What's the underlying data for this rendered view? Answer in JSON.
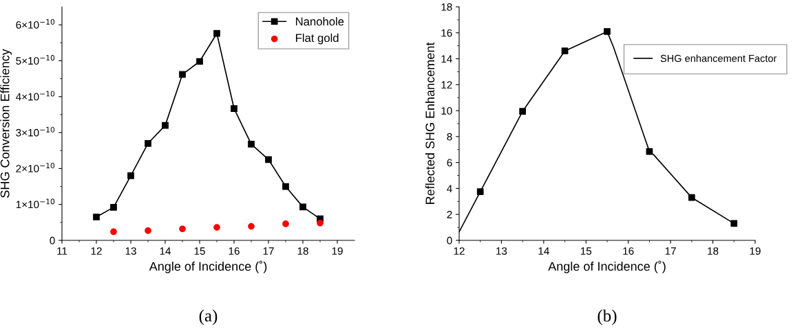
{
  "chart_data": [
    {
      "type": "line",
      "xlabel": "Angle of Incidence (˚)",
      "ylabel": "SHG Conversion Efficiency",
      "annotations": [
        "(a)"
      ],
      "legend": "top right",
      "grid": false,
      "xlim": [
        11,
        19.5
      ],
      "xticks": [
        11,
        {
          "value": 11.5,
          "label": null
        },
        12,
        {
          "value": 12.5,
          "label": null
        },
        13,
        {
          "value": 13.5,
          "label": null
        },
        14,
        {
          "value": 14.5,
          "label": null
        },
        15,
        {
          "value": 15.5,
          "label": null
        },
        16,
        {
          "value": 16.5,
          "label": null
        },
        17,
        {
          "value": 17.5,
          "label": null
        },
        18,
        {
          "value": 18.5,
          "label": null
        },
        19
      ],
      "ylim": [
        0,
        6.5e-10
      ],
      "yticks": [
        0,
        {
          "value": 5e-11,
          "label": null
        },
        {
          "value": 1e-10,
          "label": "1×10$^{−10}$"
        },
        {
          "value": 1.5e-10,
          "label": null
        },
        {
          "value": 2e-10,
          "label": "2×10$^{−10}$"
        },
        {
          "value": 2.5e-10,
          "label": null
        },
        {
          "value": 3e-10,
          "label": "3×10$^{−10}$"
        },
        {
          "value": 3.5e-10,
          "label": null
        },
        {
          "value": 4e-10,
          "label": "4×10$^{−10}$"
        },
        {
          "value": 4.5e-10,
          "label": null
        },
        {
          "value": 5e-10,
          "label": "5×10$^{−10}$"
        },
        {
          "value": 5.5e-10,
          "label": null
        },
        {
          "value": 6e-10,
          "label": "6×10$^{−10}$"
        }
      ],
      "series": [
        {
          "name": "Nanohole",
          "marker": "square",
          "color": "#000000",
          "x": [
            12,
            12.5,
            13,
            13.5,
            14,
            14.5,
            15,
            15.5,
            16,
            16.5,
            17,
            17.5,
            18,
            18.5
          ],
          "values": [
            6.5e-11,
            9.2e-11,
            1.8e-10,
            2.7e-10,
            3.2e-10,
            4.62e-10,
            4.98e-10,
            5.76e-10,
            3.67e-10,
            2.68e-10,
            2.25e-10,
            1.5e-10,
            9.3e-11,
            6e-11
          ]
        },
        {
          "name": "Flat gold",
          "type": "scatter",
          "marker": "circle",
          "color": "#ff0000",
          "x": [
            12.5,
            13.5,
            14.5,
            15.5,
            16.5,
            17.5,
            18.5
          ],
          "values": [
            2.4e-11,
            2.7e-11,
            3.2e-11,
            3.6e-11,
            3.9e-11,
            4.6e-11,
            4.8e-11
          ]
        }
      ]
    },
    {
      "type": "line",
      "xlabel": "Angle of Incidence (˚)",
      "ylabel": "Reflected SHG Enhancement",
      "annotations": [
        "(b)"
      ],
      "legend": "top right",
      "grid": false,
      "xlim": [
        12,
        19
      ],
      "xticks": [
        12,
        {
          "value": 12.5,
          "label": null
        },
        13,
        {
          "value": 13.5,
          "label": null
        },
        14,
        {
          "value": 14.5,
          "label": null
        },
        15,
        {
          "value": 15.5,
          "label": null
        },
        16,
        {
          "value": 16.5,
          "label": null
        },
        17,
        {
          "value": 17.5,
          "label": null
        },
        18,
        {
          "value": 18.5,
          "label": null
        },
        19
      ],
      "ylim": [
        0,
        18
      ],
      "yticks": [
        0,
        {
          "value": 1,
          "label": null
        },
        2,
        {
          "value": 3,
          "label": null
        },
        4,
        {
          "value": 5,
          "label": null
        },
        6,
        {
          "value": 7,
          "label": null
        },
        8,
        {
          "value": 9,
          "label": null
        },
        10,
        {
          "value": 11,
          "label": null
        },
        12,
        {
          "value": 13,
          "label": null
        },
        14,
        {
          "value": 15,
          "label": null
        },
        16,
        {
          "value": 17,
          "label": null
        },
        18
      ],
      "series": [
        {
          "name": "SHG enhancement Factor",
          "marker": "none",
          "color": "#000000",
          "x": [
            12,
            12.5,
            13.5,
            14.5,
            15.5,
            15.65,
            16.4,
            16.5,
            16.6,
            17.5,
            18.5
          ],
          "values": [
            0.65,
            3.75,
            9.95,
            14.6,
            16.1,
            14.9,
            7.8,
            6.85,
            6.6,
            3.3,
            1.3
          ]
        },
        {
          "type": "scatter",
          "marker": "square",
          "color": "#000000",
          "x": [
            12.5,
            13.5,
            14.5,
            15.5,
            16.5,
            17.5,
            18.5
          ],
          "values": [
            3.75,
            9.95,
            14.6,
            16.1,
            6.85,
            3.3,
            1.3
          ]
        }
      ]
    }
  ]
}
